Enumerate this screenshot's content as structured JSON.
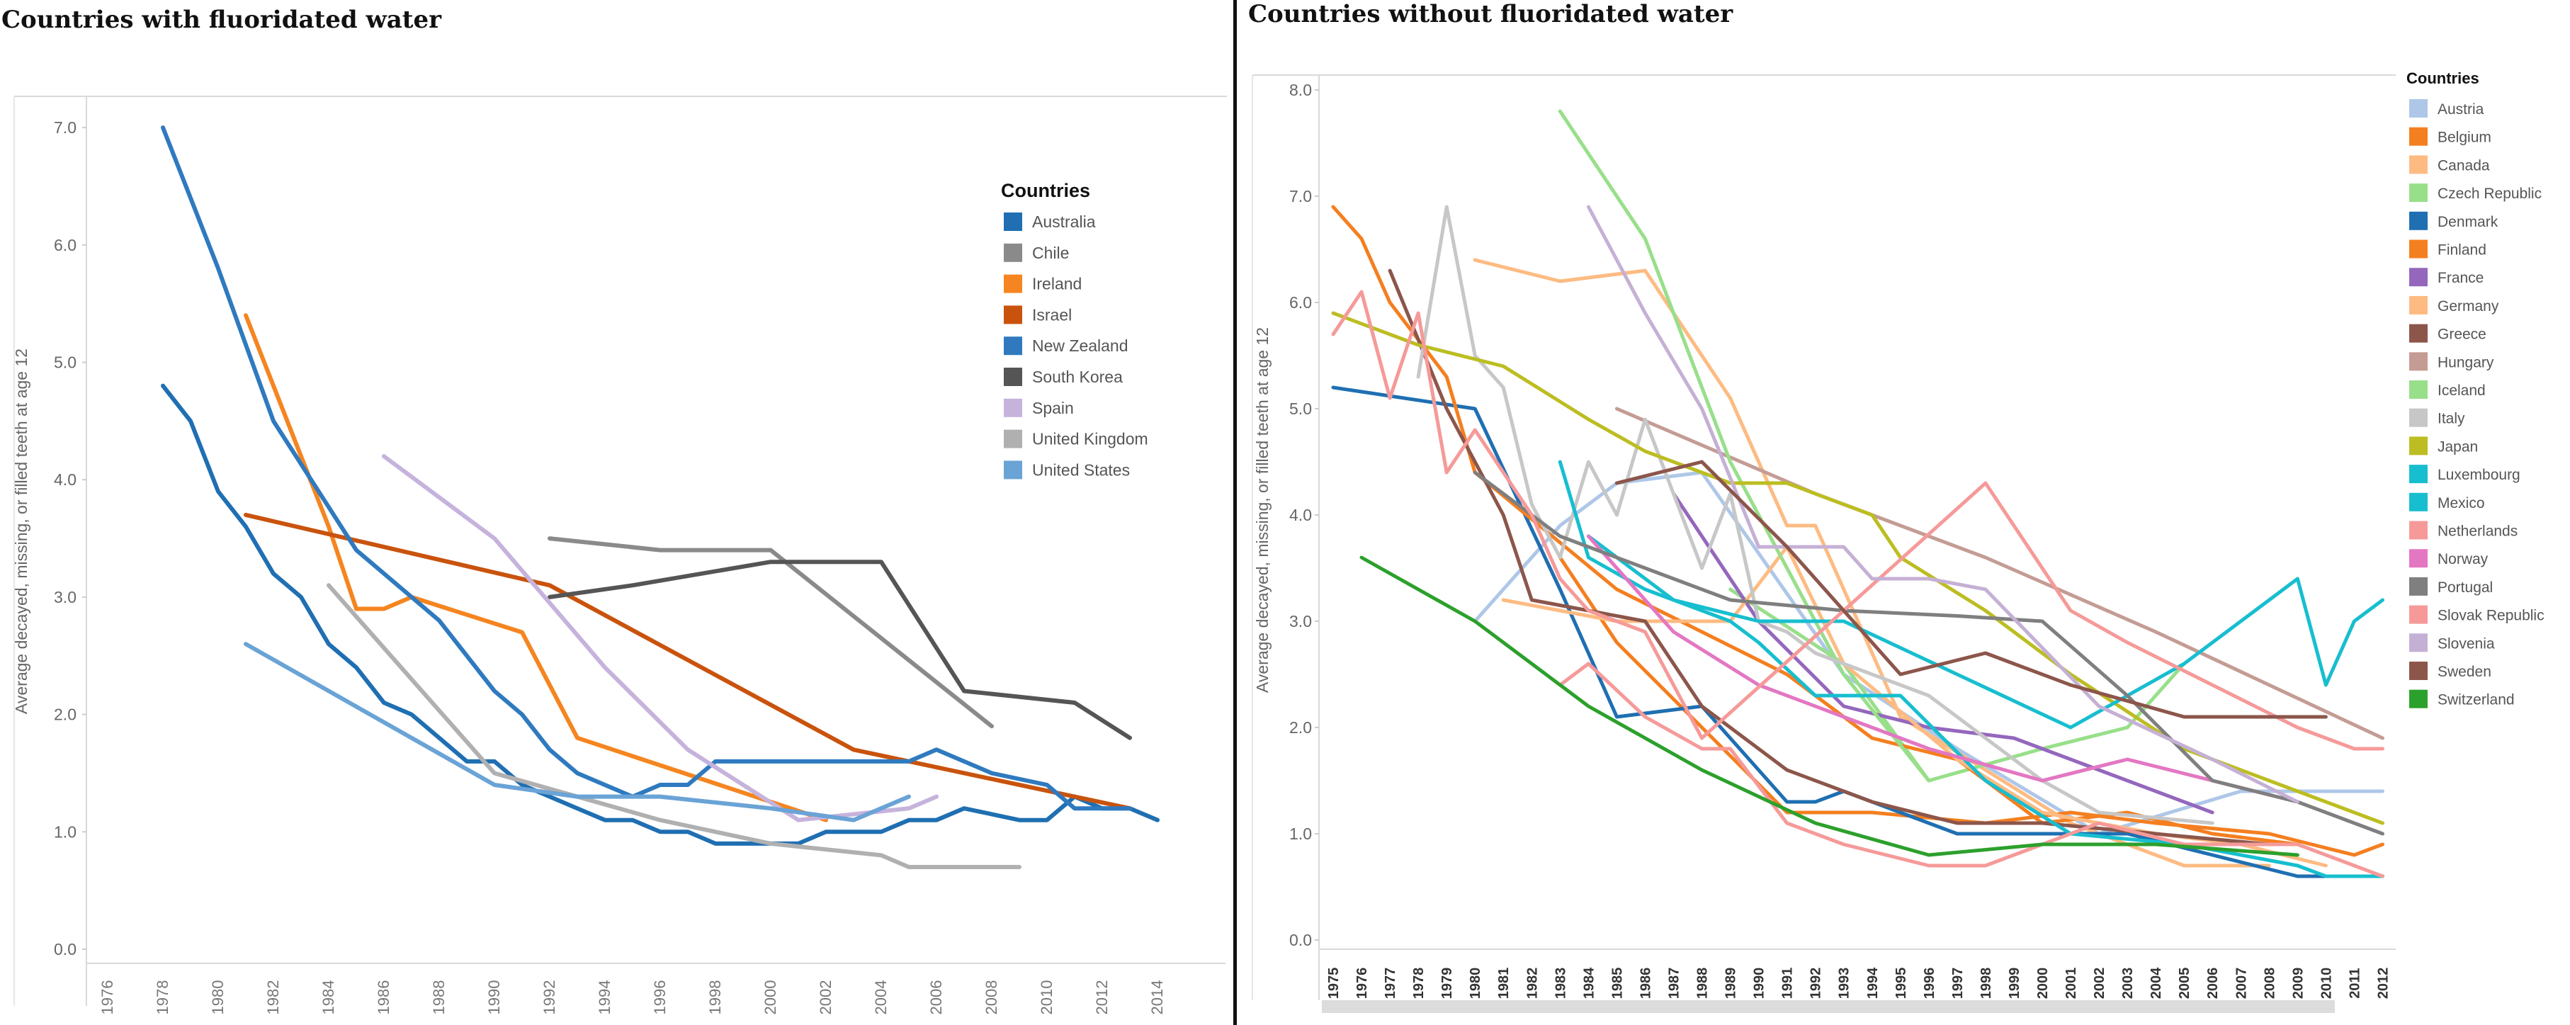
{
  "left_title": "Countries with fluoridated water",
  "right_title": "Countries without fluoridated water",
  "colors": {
    "Australia": "#1f6fb2",
    "Chile": "#8a8a8a",
    "Ireland": "#f58520",
    "Israel": "#c9530d",
    "New Zealand": "#2f7abf",
    "South Korea": "#555555",
    "Spain": "#c6b3dc",
    "United Kingdom": "#b0b0b0",
    "United States": "#6aa3d6",
    "Austria": "#aec7e8",
    "Belgium": "#f47f20",
    "Canada": "#fdbb82",
    "Czech Republic": "#98df8a",
    "Denmark": "#1f6fb2",
    "Finland": "#f47f20",
    "France": "#9467bd",
    "Germany": "#fdbb82",
    "Greece": "#8c564b",
    "Hungary": "#c49c94",
    "Iceland": "#98df8a",
    "Italy": "#c7c7c7",
    "Japan": "#bcbd22",
    "Luxembourg": "#17becf",
    "Mexico": "#17becf",
    "Netherlands": "#f59a99",
    "Norway": "#e377c2",
    "Portugal": "#7f7f7f",
    "Slovak Republic": "#f59a99",
    "Slovenia": "#c5b0d5",
    "Sweden": "#8c564b",
    "Switzerland": "#2ca02c"
  },
  "chart_data": [
    {
      "type": "line",
      "title": "Countries with fluoridated water",
      "xlabel": "",
      "ylabel": "Average decayed, missing, or filled teeth at age 12",
      "xlim": [
        1975,
        2015
      ],
      "ylim": [
        0,
        7.5
      ],
      "x_ticks": [
        "1976",
        "1978",
        "1980",
        "1982",
        "1984",
        "1986",
        "1988",
        "1990",
        "1992",
        "1994",
        "1996",
        "1998",
        "2000",
        "2002",
        "2004",
        "2006",
        "2008",
        "2010",
        "2012",
        "2014"
      ],
      "y_ticks": [
        "0.0",
        "1.0",
        "2.0",
        "3.0",
        "4.0",
        "5.0",
        "6.0",
        "7.0"
      ],
      "legend_title": "Countries",
      "legend_position": "top-right",
      "series": [
        {
          "name": "Australia",
          "x": [
            1978,
            1979,
            1980,
            1981,
            1982,
            1983,
            1984,
            1985,
            1986,
            1987,
            1988,
            1989,
            1990,
            1991,
            1992,
            1993,
            1994,
            1995,
            1996,
            1997,
            1998,
            1999,
            2000,
            2001,
            2002,
            2003,
            2004,
            2005,
            2006,
            2007,
            2008,
            2009,
            2010,
            2011,
            2012,
            2013,
            2014
          ],
          "y": [
            4.8,
            4.5,
            3.9,
            3.6,
            3.2,
            3.0,
            2.6,
            2.4,
            2.1,
            2.0,
            1.8,
            1.6,
            1.6,
            1.4,
            1.3,
            1.2,
            1.1,
            1.1,
            1.0,
            1.0,
            0.9,
            0.9,
            0.9,
            0.9,
            1.0,
            1.0,
            1.0,
            1.1,
            1.1,
            1.2,
            1.15,
            1.1,
            1.1,
            1.3,
            1.2,
            1.2,
            1.1
          ]
        },
        {
          "name": "Chile",
          "x": [
            1992,
            1996,
            2000,
            2008
          ],
          "y": [
            3.5,
            3.4,
            3.4,
            1.9
          ]
        },
        {
          "name": "Ireland",
          "x": [
            1981,
            1984,
            1985,
            1986,
            1987,
            1991,
            1993,
            2002
          ],
          "y": [
            5.4,
            3.6,
            2.9,
            2.9,
            3.0,
            2.7,
            1.8,
            1.1
          ]
        },
        {
          "name": "Israel",
          "x": [
            1981,
            1992,
            2003,
            2013
          ],
          "y": [
            3.7,
            3.1,
            1.7,
            1.2
          ]
        },
        {
          "name": "New Zealand",
          "x": [
            1978,
            1980,
            1982,
            1985,
            1988,
            1990,
            1991,
            1992,
            1993,
            1995,
            1996,
            1997,
            1998,
            2000,
            2002,
            2005,
            2006,
            2008,
            2010,
            2011,
            2013
          ],
          "y": [
            7.0,
            5.8,
            4.5,
            3.4,
            2.8,
            2.2,
            2.0,
            1.7,
            1.5,
            1.3,
            1.4,
            1.4,
            1.6,
            1.6,
            1.6,
            1.6,
            1.7,
            1.5,
            1.4,
            1.2,
            1.2
          ]
        },
        {
          "name": "South Korea",
          "x": [
            1992,
            1995,
            2000,
            2004,
            2007,
            2011,
            2013
          ],
          "y": [
            3.0,
            3.1,
            3.3,
            3.3,
            2.2,
            2.1,
            1.8
          ]
        },
        {
          "name": "Spain",
          "x": [
            1986,
            1990,
            1994,
            1997,
            2001,
            2005,
            2006
          ],
          "y": [
            4.2,
            3.5,
            2.4,
            1.7,
            1.1,
            1.2,
            1.3
          ]
        },
        {
          "name": "United Kingdom",
          "x": [
            1984,
            1990,
            1996,
            2000,
            2004,
            2005,
            2009
          ],
          "y": [
            3.1,
            1.5,
            1.1,
            0.9,
            0.8,
            0.7,
            0.7
          ]
        },
        {
          "name": "United States",
          "x": [
            1981,
            1990,
            1993,
            1996,
            2000,
            2003,
            2005
          ],
          "y": [
            2.6,
            1.4,
            1.3,
            1.3,
            1.2,
            1.1,
            1.3
          ]
        }
      ]
    },
    {
      "type": "line",
      "title": "Countries without fluoridated water",
      "xlabel": "",
      "ylabel": "Average decayed, missing, or filled teeth at age 12",
      "xlim": [
        1975,
        2012
      ],
      "ylim": [
        0,
        8.2
      ],
      "x_ticks": [
        "1975",
        "1976",
        "1977",
        "1978",
        "1979",
        "1980",
        "1981",
        "1982",
        "1983",
        "1984",
        "1985",
        "1986",
        "1987",
        "1988",
        "1989",
        "1990",
        "1991",
        "1992",
        "1993",
        "1994",
        "1995",
        "1996",
        "1997",
        "1998",
        "1999",
        "2000",
        "2001",
        "2002",
        "2003",
        "2004",
        "2005",
        "2006",
        "2007",
        "2008",
        "2009",
        "2010",
        "2011",
        "2012"
      ],
      "y_ticks": [
        "0.0",
        "1.0",
        "2.0",
        "3.0",
        "4.0",
        "5.0",
        "6.0",
        "7.0",
        "8.0"
      ],
      "legend_title": "Countries",
      "legend_position": "right",
      "series": [
        {
          "name": "Austria",
          "x": [
            1980,
            1983,
            1985,
            1988,
            1993,
            1997,
            2002,
            2007,
            2012
          ],
          "y": [
            3.0,
            3.9,
            4.3,
            4.4,
            2.5,
            1.8,
            1.0,
            1.4,
            1.4
          ]
        },
        {
          "name": "Belgium",
          "x": [
            1983,
            1985,
            1988,
            1991,
            1994,
            1998,
            2001,
            2004,
            2008,
            2011,
            2012
          ],
          "y": [
            3.6,
            2.8,
            2.0,
            1.2,
            1.2,
            1.1,
            1.2,
            1.1,
            1.0,
            0.8,
            0.9
          ]
        },
        {
          "name": "Canada",
          "x": [
            1980,
            1983,
            1986,
            1989,
            1991,
            1992,
            1995,
            2001,
            2005,
            2008
          ],
          "y": [
            6.4,
            6.2,
            6.3,
            5.1,
            3.9,
            3.9,
            2.1,
            1.1,
            0.7,
            0.7
          ]
        },
        {
          "name": "Czech Republic",
          "x": [
            1989,
            1993,
            1996,
            2000,
            2003,
            2005
          ],
          "y": [
            3.3,
            2.6,
            1.5,
            1.8,
            2.0,
            2.6
          ]
        },
        {
          "name": "Denmark",
          "x": [
            1975,
            1980,
            1983,
            1985,
            1988,
            1991,
            1992,
            1993,
            1995,
            1997,
            2000,
            2003,
            2006,
            2009,
            2012
          ],
          "y": [
            5.2,
            5.0,
            3.3,
            2.1,
            2.2,
            1.3,
            1.3,
            1.4,
            1.2,
            1.0,
            1.0,
            1.0,
            0.8,
            0.6,
            0.6
          ]
        },
        {
          "name": "Finland",
          "x": [
            1975,
            1976,
            1977,
            1979,
            1980,
            1985,
            1988,
            1991,
            1994,
            1997,
            2000,
            2003,
            2006,
            2009
          ],
          "y": [
            6.9,
            6.6,
            6.0,
            5.3,
            4.4,
            3.3,
            2.9,
            2.5,
            1.9,
            1.7,
            1.1,
            1.2,
            1.0,
            0.9
          ]
        },
        {
          "name": "France",
          "x": [
            1987,
            1990,
            1993,
            1996,
            1999,
            2002,
            2006
          ],
          "y": [
            4.2,
            3.0,
            2.2,
            2.0,
            1.9,
            1.6,
            1.2
          ]
        },
        {
          "name": "Germany",
          "x": [
            1981,
            1983,
            1985,
            1989,
            1991,
            1993,
            1997,
            2000,
            2004,
            2007,
            2010
          ],
          "y": [
            3.2,
            3.1,
            3.0,
            3.0,
            3.7,
            2.6,
            1.7,
            1.2,
            1.0,
            0.9,
            0.7
          ]
        },
        {
          "name": "Greece",
          "x": [
            1977,
            1979,
            1981,
            1982,
            1984,
            1986,
            1988,
            1991,
            1994,
            1997,
            2000,
            2004,
            2008
          ],
          "y": [
            6.3,
            5.0,
            4.0,
            3.2,
            3.1,
            3.0,
            2.2,
            1.6,
            1.3,
            1.1,
            1.1,
            1.0,
            0.9
          ]
        },
        {
          "name": "Hungary",
          "x": [
            1985,
            1992,
            1998,
            2004,
            2012
          ],
          "y": [
            5.0,
            4.2,
            3.6,
            2.9,
            1.9
          ]
        },
        {
          "name": "Iceland",
          "x": [
            1983,
            1986,
            1989,
            1993,
            1996
          ],
          "y": [
            7.8,
            6.6,
            4.5,
            2.5,
            1.5
          ]
        },
        {
          "name": "Italy",
          "x": [
            1978,
            1979,
            1980,
            1981,
            1982,
            1983,
            1984,
            1985,
            1986,
            1988,
            1989,
            1990,
            1991,
            1992,
            1994,
            1996,
            1998,
            2000,
            2002,
            2006
          ],
          "y": [
            5.3,
            6.9,
            5.5,
            5.2,
            4.1,
            3.6,
            4.5,
            4.0,
            4.9,
            3.5,
            4.2,
            3.0,
            2.9,
            2.7,
            2.5,
            2.3,
            1.9,
            1.5,
            1.2,
            1.1
          ]
        },
        {
          "name": "Japan",
          "x": [
            1975,
            1978,
            1981,
            1984,
            1986,
            1989,
            1991,
            1994,
            1995,
            1998,
            2001,
            2005,
            2009,
            2012
          ],
          "y": [
            5.9,
            5.6,
            5.4,
            4.9,
            4.6,
            4.3,
            4.3,
            4.0,
            3.6,
            3.1,
            2.5,
            1.8,
            1.4,
            1.1
          ]
        },
        {
          "name": "Luxembourg",
          "x": [
            1983,
            1984,
            1986,
            1989,
            1990,
            1992,
            1995,
            1998,
            2001,
            2005,
            2009,
            2010,
            2012
          ],
          "y": [
            4.5,
            3.6,
            3.3,
            3.0,
            2.8,
            2.3,
            2.3,
            1.5,
            1.0,
            0.9,
            0.7,
            0.6,
            0.6
          ]
        },
        {
          "name": "Mexico",
          "x": [
            1984,
            1987,
            1990,
            1993,
            1997,
            2001,
            2005,
            2009,
            2010,
            2011,
            2012
          ],
          "y": [
            3.8,
            3.2,
            3.0,
            3.0,
            2.5,
            2.0,
            2.6,
            3.4,
            2.4,
            3.0,
            3.2
          ]
        },
        {
          "name": "Netherlands",
          "x": [
            1983,
            1984,
            1986,
            1988,
            1989,
            1991,
            1993,
            1996,
            1998,
            2002,
            2005,
            2009,
            2011,
            2012
          ],
          "y": [
            2.4,
            2.6,
            2.1,
            1.8,
            1.8,
            1.1,
            0.9,
            0.7,
            0.7,
            1.1,
            0.9,
            0.9,
            0.7,
            0.6
          ]
        },
        {
          "name": "Norway",
          "x": [
            1984,
            1987,
            1990,
            1993,
            1996,
            2000,
            2003,
            2006,
            2009
          ],
          "y": [
            3.8,
            2.9,
            2.4,
            2.1,
            1.8,
            1.5,
            1.7,
            1.5,
            1.3
          ]
        },
        {
          "name": "Portugal",
          "x": [
            1980,
            1983,
            1986,
            1989,
            1993,
            1997,
            2000,
            2003,
            2006,
            2009,
            2012
          ],
          "y": [
            4.4,
            3.8,
            3.5,
            3.2,
            3.1,
            3.05,
            3.0,
            2.3,
            1.5,
            1.3,
            1.0
          ]
        },
        {
          "name": "Slovak Republic",
          "x": [
            1975,
            1976,
            1977,
            1978,
            1979,
            1980,
            1982,
            1983,
            1984,
            1986,
            1988,
            1998,
            2001,
            2003,
            2006,
            2009,
            2011,
            2012
          ],
          "y": [
            5.7,
            6.1,
            5.1,
            5.9,
            4.4,
            4.8,
            4.0,
            3.4,
            3.1,
            2.9,
            1.9,
            4.3,
            3.1,
            2.8,
            2.4,
            2.0,
            1.8,
            1.8
          ]
        },
        {
          "name": "Slovenia",
          "x": [
            1984,
            1986,
            1988,
            1990,
            1993,
            1994,
            1996,
            1998,
            2002,
            2006,
            2009
          ],
          "y": [
            6.9,
            5.9,
            5.0,
            3.7,
            3.7,
            3.4,
            3.4,
            3.3,
            2.2,
            1.7,
            1.3
          ]
        },
        {
          "name": "Sweden",
          "x": [
            1985,
            1988,
            1991,
            1995,
            1998,
            2001,
            2005,
            2010
          ],
          "y": [
            4.3,
            4.5,
            3.7,
            2.5,
            2.7,
            2.4,
            2.1,
            2.1
          ]
        },
        {
          "name": "Switzerland",
          "x": [
            1976,
            1980,
            1984,
            1988,
            1992,
            1996,
            2000,
            2004,
            2009
          ],
          "y": [
            3.6,
            3.0,
            2.2,
            1.6,
            1.1,
            0.8,
            0.9,
            0.9,
            0.8
          ]
        }
      ]
    }
  ]
}
